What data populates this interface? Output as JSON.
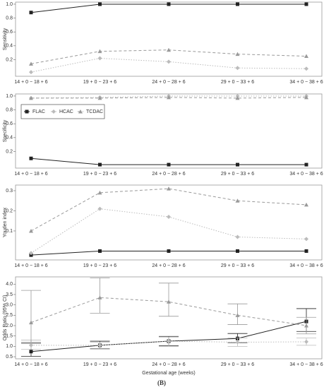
{
  "caption": "(B)",
  "chart_data": [
    {
      "type": "line",
      "ylabel": "Sensitivity",
      "categories": [
        "14 + 0 − 18 + 6",
        "19 + 0 − 23 + 6",
        "24 + 0 − 28 + 6",
        "29 + 0 − 33 + 6",
        "34 + 0 − 38 + 6"
      ],
      "ylim": [
        -0.04,
        1.03
      ],
      "yticks": [
        0.2,
        0.4,
        0.6,
        0.8,
        {
          "value": 1.0,
          "label": "1.0"
        }
      ],
      "series": [
        {
          "name": "FLAC",
          "color": "#222222",
          "marker": "square",
          "dash": "solid",
          "values": [
            0.88,
            1.0,
            1.0,
            1.0,
            1.0
          ]
        },
        {
          "name": "HCAC",
          "color": "#bbbbbb",
          "marker": "diamond",
          "dash": "dotted",
          "values": [
            0.02,
            0.22,
            0.17,
            0.08,
            0.07
          ]
        },
        {
          "name": "TCDAC",
          "color": "#999999",
          "marker": "triangle",
          "dash": "dashed",
          "values": [
            0.14,
            0.32,
            0.34,
            0.28,
            0.25
          ]
        }
      ]
    },
    {
      "type": "line",
      "ylabel": "Specificity",
      "categories": [
        "14 + 0 − 18 + 6",
        "19 + 0 − 23 + 6",
        "24 + 0 − 28 + 6",
        "29 + 0 − 33 + 6",
        "34 + 0 − 38 + 6"
      ],
      "ylim": [
        -0.04,
        1.03
      ],
      "yticks": [
        0.2,
        0.4,
        0.6,
        0.8,
        {
          "value": 1.0,
          "label": "1.0"
        }
      ],
      "legend": "top-left",
      "series": [
        {
          "name": "FLAC",
          "color": "#222222",
          "marker": "square",
          "dash": "solid",
          "values": [
            0.1,
            0.01,
            0.01,
            0.01,
            0.01
          ]
        },
        {
          "name": "HCAC",
          "color": "#bbbbbb",
          "marker": "diamond",
          "dash": "dotted",
          "values": [
            0.97,
            0.98,
            1.0,
            1.0,
            1.0
          ]
        },
        {
          "name": "TCDAC",
          "color": "#999999",
          "marker": "triangle",
          "dash": "dashed",
          "values": [
            0.97,
            0.97,
            0.98,
            0.97,
            0.98
          ]
        }
      ]
    },
    {
      "type": "line",
      "ylabel": "Youden index",
      "categories": [
        "14 + 0 − 18 + 6",
        "19 + 0 − 23 + 6",
        "24 + 0 − 28 + 6",
        "29 + 0 − 33 + 6",
        "34 + 0 − 38 + 6"
      ],
      "ylim": [
        -0.044,
        0.328
      ],
      "yticks": [
        0.1,
        0.2,
        0.3
      ],
      "series": [
        {
          "name": "FLAC",
          "color": "#222222",
          "marker": "square",
          "dash": "solid",
          "values": [
            -0.02,
            0.0,
            0.0,
            0.0,
            0.0
          ]
        },
        {
          "name": "HCAC",
          "color": "#bbbbbb",
          "marker": "diamond",
          "dash": "dotted",
          "values": [
            -0.01,
            0.21,
            0.17,
            0.07,
            0.06
          ]
        },
        {
          "name": "TCDAC",
          "color": "#999999",
          "marker": "triangle",
          "dash": "dashed",
          "values": [
            0.1,
            0.29,
            0.31,
            0.25,
            0.23
          ]
        }
      ]
    },
    {
      "type": "errorbar",
      "ylabel": "Odds Ratio (95% CI)",
      "xlabel": "Gestational age (weeks)",
      "categories": [
        "14 + 0 − 18 + 6",
        "19 + 0 − 23 + 6",
        "24 + 0 − 28 + 6",
        "29 + 0 − 33 + 6",
        "34 + 0 − 38 + 6"
      ],
      "ylim": [
        0.4,
        4.35
      ],
      "yticks": [
        0.5,
        {
          "value": 1.0,
          "label": "1.0"
        },
        1.5,
        {
          "value": 2.0,
          "label": "2.0"
        },
        2.5,
        {
          "value": 3.0,
          "label": "3.0"
        },
        3.5,
        {
          "value": 4.0,
          "label": "4.0"
        }
      ],
      "series": [
        {
          "name": "FLAC",
          "color": "#222222",
          "marker": "square",
          "dash": "solid",
          "values": [
            0.75,
            1.05,
            1.25,
            1.38,
            2.2
          ],
          "ci_low": [
            0.52,
            0.88,
            1.03,
            1.18,
            1.72
          ],
          "ci_high": [
            1.15,
            1.25,
            1.48,
            1.62,
            2.82
          ]
        },
        {
          "name": "HCAC",
          "color": "#bbbbbb",
          "marker": "diamond",
          "dash": "dotted",
          "values": [
            1.05,
            1.05,
            1.25,
            1.2,
            1.22
          ],
          "ci_low": [
            0.85,
            0.9,
            1.0,
            1.0,
            1.05
          ],
          "ci_high": [
            1.3,
            1.2,
            1.45,
            1.4,
            1.4
          ]
        },
        {
          "name": "TCDAC",
          "color": "#999999",
          "marker": "triangle",
          "dash": "dashed",
          "values": [
            2.15,
            3.35,
            3.15,
            2.5,
            2.0
          ],
          "ci_low": [
            1.2,
            2.6,
            2.45,
            2.05,
            1.6
          ],
          "ci_high": [
            3.7,
            4.3,
            4.05,
            3.05,
            2.4
          ]
        }
      ]
    }
  ]
}
